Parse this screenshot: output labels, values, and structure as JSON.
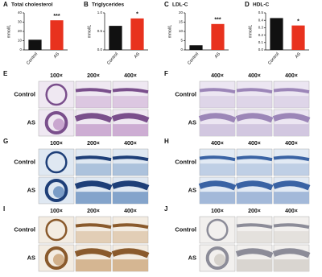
{
  "chart_data": [
    {
      "type": "bar",
      "label": "A",
      "title": "Total cholesterol",
      "y_label": "mmol/L",
      "categories": [
        "Control",
        "AS"
      ],
      "values": [
        11,
        32
      ],
      "colors": [
        "#111111",
        "#e8321e"
      ],
      "annotation": "***",
      "ylim": [
        0,
        40
      ],
      "yticks": [
        0,
        10,
        20,
        30,
        40
      ]
    },
    {
      "type": "bar",
      "label": "B",
      "title": "Triglycerides",
      "y_label": "mmol/L",
      "categories": [
        "Control",
        "AS"
      ],
      "values": [
        0.65,
        0.85
      ],
      "colors": [
        "#111111",
        "#e8321e"
      ],
      "annotation": "*",
      "ylim": [
        0,
        1
      ],
      "yticks": [
        {
          "value": 0,
          "label": "0.0"
        },
        0.5,
        {
          "value": 1,
          "label": "1.0"
        }
      ]
    },
    {
      "type": "bar",
      "label": "C",
      "title": "LDL-C",
      "y_label": "mmol/L",
      "categories": [
        "Control",
        "AS"
      ],
      "values": [
        2.5,
        14
      ],
      "colors": [
        "#111111",
        "#e8321e"
      ],
      "annotation": "***",
      "ylim": [
        0,
        20
      ],
      "yticks": [
        0,
        5,
        10,
        15,
        20
      ]
    },
    {
      "type": "bar",
      "label": "D",
      "title": "HDL-C",
      "y_label": "mmol/L",
      "categories": [
        "Control",
        "AS"
      ],
      "values": [
        0.43,
        0.33
      ],
      "colors": [
        "#111111",
        "#e8321e"
      ],
      "annotation": "*",
      "ylim": [
        0,
        0.5
      ],
      "yticks": [
        {
          "value": 0,
          "label": "0.0"
        },
        0.1,
        0.2,
        0.3,
        0.4,
        0.5
      ]
    }
  ],
  "image_panels": [
    {
      "label": "E",
      "columns": [
        "100×",
        "200×",
        "400×"
      ],
      "rows": [
        "Control",
        "AS"
      ]
    },
    {
      "label": "F",
      "columns": [
        "400×",
        "400×",
        "400×"
      ],
      "rows": [
        "Control",
        "AS"
      ]
    },
    {
      "label": "G",
      "columns": [
        "100×",
        "200×",
        "400×"
      ],
      "rows": [
        "Control",
        "AS"
      ]
    },
    {
      "label": "H",
      "columns": [
        "400×",
        "400×",
        "400×"
      ],
      "rows": [
        "Control",
        "AS"
      ]
    },
    {
      "label": "I",
      "columns": [
        "100×",
        "200×",
        "400×"
      ],
      "rows": [
        "Control",
        "AS"
      ]
    },
    {
      "label": "J",
      "columns": [
        "100×",
        "200×",
        "400×"
      ],
      "rows": [
        "Control",
        "AS"
      ]
    }
  ]
}
